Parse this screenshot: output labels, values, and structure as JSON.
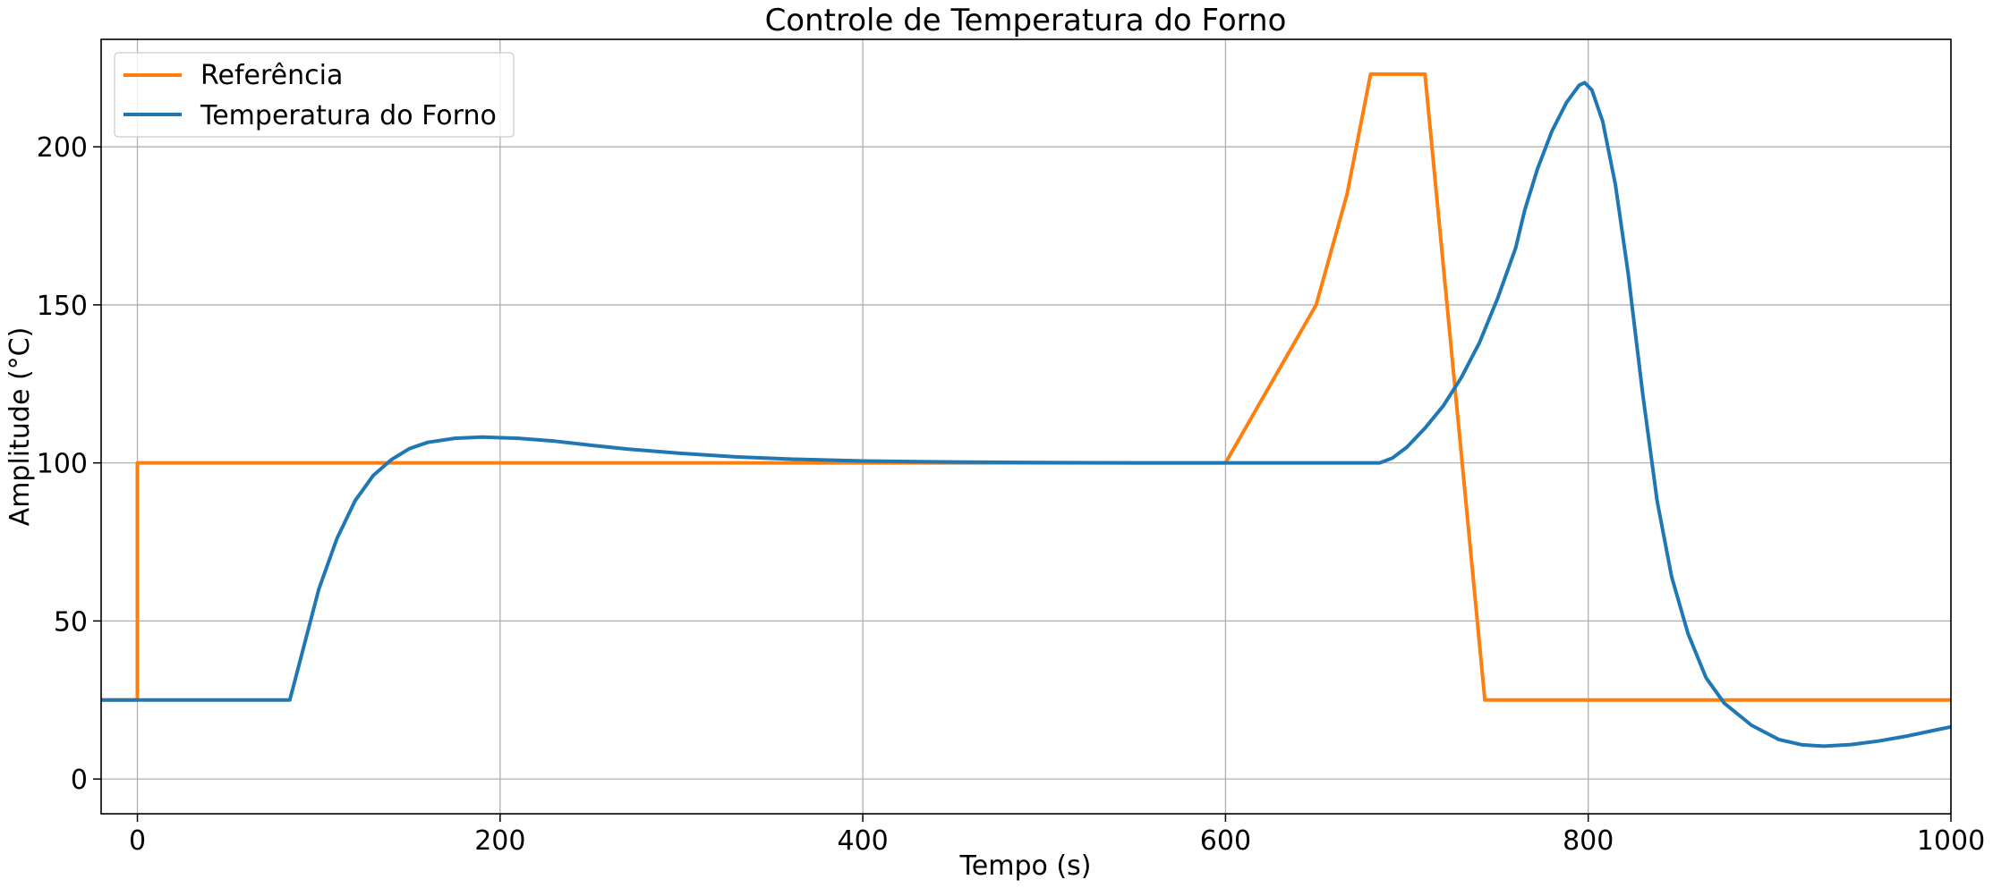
{
  "chart_data": {
    "type": "line",
    "title": "Controle de Temperatura do Forno",
    "xlabel": "Tempo (s)",
    "ylabel": "Amplitude (°C)",
    "xlim": [
      -20,
      1000
    ],
    "ylim": [
      -11,
      234
    ],
    "xticks": [
      0,
      200,
      400,
      600,
      800,
      1000
    ],
    "yticks": [
      0,
      50,
      100,
      150,
      200
    ],
    "grid": true,
    "legend_position": "upper-left",
    "series": [
      {
        "name": "Referência",
        "color": "#ff7f0e",
        "points": [
          [
            -20,
            25
          ],
          [
            0,
            25
          ],
          [
            0,
            100
          ],
          [
            600,
            100
          ],
          [
            650,
            150
          ],
          [
            667,
            185
          ],
          [
            680,
            223
          ],
          [
            710,
            223
          ],
          [
            743,
            25
          ],
          [
            1000,
            25
          ]
        ]
      },
      {
        "name": "Temperatura do Forno",
        "color": "#1f77b4",
        "points": [
          [
            -20,
            25
          ],
          [
            0,
            25
          ],
          [
            84,
            25
          ],
          [
            90,
            38
          ],
          [
            100,
            60
          ],
          [
            110,
            76
          ],
          [
            120,
            88
          ],
          [
            130,
            96
          ],
          [
            140,
            101
          ],
          [
            150,
            104.5
          ],
          [
            160,
            106.5
          ],
          [
            175,
            107.8
          ],
          [
            190,
            108.2
          ],
          [
            210,
            107.8
          ],
          [
            230,
            106.9
          ],
          [
            250,
            105.6
          ],
          [
            270,
            104.4
          ],
          [
            300,
            103
          ],
          [
            330,
            101.9
          ],
          [
            360,
            101.2
          ],
          [
            400,
            100.6
          ],
          [
            450,
            100.3
          ],
          [
            500,
            100.1
          ],
          [
            550,
            100
          ],
          [
            600,
            100
          ],
          [
            650,
            100
          ],
          [
            685,
            100
          ],
          [
            692,
            101.5
          ],
          [
            700,
            105
          ],
          [
            710,
            111
          ],
          [
            720,
            118
          ],
          [
            730,
            127
          ],
          [
            740,
            138
          ],
          [
            750,
            152
          ],
          [
            760,
            168
          ],
          [
            765,
            180
          ],
          [
            772,
            193
          ],
          [
            780,
            205
          ],
          [
            788,
            214
          ],
          [
            795,
            219.5
          ],
          [
            798,
            220.3
          ],
          [
            802,
            218
          ],
          [
            808,
            208
          ],
          [
            815,
            188
          ],
          [
            822,
            160
          ],
          [
            830,
            122
          ],
          [
            838,
            88
          ],
          [
            846,
            64
          ],
          [
            855,
            46
          ],
          [
            865,
            32
          ],
          [
            875,
            24
          ],
          [
            890,
            17
          ],
          [
            905,
            12.5
          ],
          [
            918,
            10.8
          ],
          [
            930,
            10.4
          ],
          [
            945,
            10.9
          ],
          [
            960,
            12
          ],
          [
            975,
            13.5
          ],
          [
            990,
            15.3
          ],
          [
            1000,
            16.5
          ]
        ]
      }
    ]
  }
}
